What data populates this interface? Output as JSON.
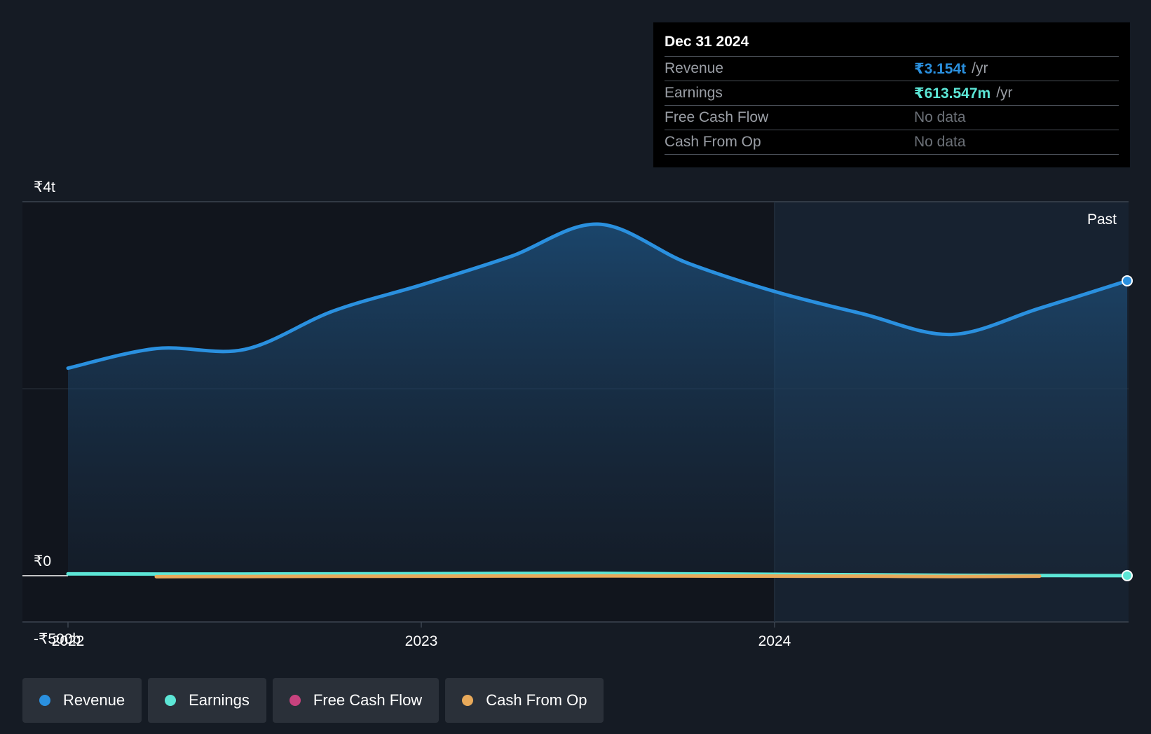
{
  "colors": {
    "revenue": "#2a90df",
    "earnings": "#5ce6d6",
    "free_cash_flow": "#c8427e",
    "cash_from_op": "#e8a95a",
    "background": "#151b24"
  },
  "tooltip": {
    "date": "Dec 31 2024",
    "rows": [
      {
        "label": "Revenue",
        "value": "₹3.154t",
        "unit": "/yr"
      },
      {
        "label": "Earnings",
        "value": "₹613.547m",
        "unit": "/yr"
      },
      {
        "label": "Free Cash Flow",
        "value": "No data",
        "unit": ""
      },
      {
        "label": "Cash From Op",
        "value": "No data",
        "unit": ""
      }
    ]
  },
  "legend": [
    {
      "label": "Revenue",
      "color_key": "revenue"
    },
    {
      "label": "Earnings",
      "color_key": "earnings"
    },
    {
      "label": "Free Cash Flow",
      "color_key": "free_cash_flow"
    },
    {
      "label": "Cash From Op",
      "color_key": "cash_from_op"
    }
  ],
  "chart_data": {
    "type": "area",
    "title": "",
    "xlabel": "",
    "ylabel": "",
    "x_ticks": [
      {
        "label": "2022",
        "value": 2022.0
      },
      {
        "label": "2023",
        "value": 2023.0
      },
      {
        "label": "2024",
        "value": 2024.0
      }
    ],
    "y_ticks": [
      {
        "label": "₹4t",
        "value": 4000
      },
      {
        "label": "₹0",
        "value": 0
      },
      {
        "label": "-₹500b",
        "value": -500
      }
    ],
    "y_unit": "₹ billions",
    "ylim": [
      -500,
      4000
    ],
    "xlim": [
      2021.87,
      2024.99
    ],
    "past_label": "Past",
    "past_region_start": 2024.0,
    "series": [
      {
        "name": "Revenue",
        "color_key": "revenue",
        "x": [
          2022.0,
          2022.25,
          2022.5,
          2022.75,
          2023.0,
          2023.25,
          2023.5,
          2023.75,
          2024.0,
          2024.25,
          2024.5,
          2024.75,
          2025.0
        ],
        "values": [
          2220,
          2430,
          2420,
          2830,
          3110,
          3410,
          3760,
          3350,
          3040,
          2800,
          2580,
          2860,
          3154
        ]
      },
      {
        "name": "Earnings",
        "color_key": "earnings",
        "x": [
          2022.0,
          2022.25,
          2022.5,
          2022.75,
          2023.0,
          2023.25,
          2023.5,
          2023.75,
          2024.0,
          2024.25,
          2024.5,
          2024.75,
          2025.0
        ],
        "values": [
          20,
          18,
          18,
          20,
          22,
          24,
          25,
          20,
          15,
          10,
          5,
          2,
          0.6
        ]
      },
      {
        "name": "Cash From Op",
        "color_key": "cash_from_op",
        "x": [
          2022.25,
          2022.5,
          2022.75,
          2023.0,
          2023.25,
          2023.5,
          2023.75,
          2024.0,
          2024.25,
          2024.5,
          2024.75
        ],
        "values": [
          -10,
          -8,
          -6,
          -5,
          -3,
          -2,
          -3,
          -4,
          -5,
          -8,
          -5
        ]
      }
    ]
  }
}
